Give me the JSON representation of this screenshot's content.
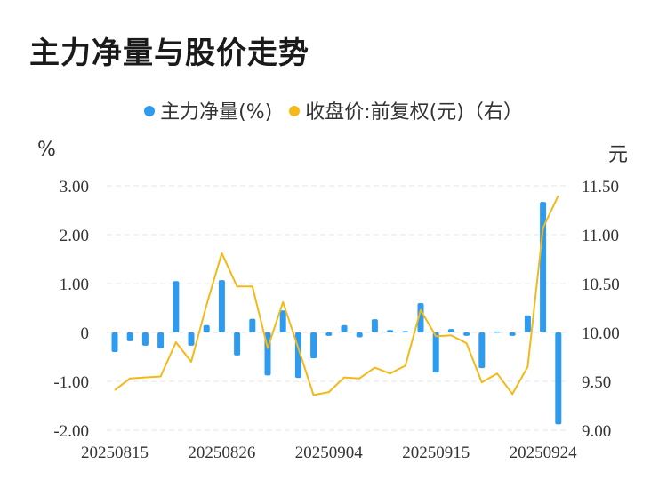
{
  "title": "主力净量与股价走势",
  "legend": {
    "bar_label": "主力净量(%)",
    "line_label": "收盘价:前复权(元)（右）"
  },
  "units": {
    "left": "%",
    "right": "元"
  },
  "colors": {
    "bar": "#2e9bef",
    "line": "#f5b819",
    "grid": "#e6e6e6"
  },
  "chart_data": {
    "type": "bar+line",
    "x_tick_labels": [
      "20250815",
      "20250826",
      "20250904",
      "20250915",
      "20250924"
    ],
    "x_tick_indices": [
      0,
      7,
      14,
      21,
      28
    ],
    "left_axis": {
      "ticks": [
        3.0,
        2.0,
        1.0,
        0,
        -1.0,
        -2.0
      ],
      "tick_labels": [
        "3.00",
        "2.00",
        "1.00",
        "0",
        "-1.00",
        "-2.00"
      ],
      "range": [
        -2.0,
        3.0
      ]
    },
    "right_axis": {
      "ticks": [
        11.5,
        11.0,
        10.5,
        10.0,
        9.5,
        9.0
      ],
      "tick_labels": [
        "11.50",
        "11.00",
        "10.50",
        "10.00",
        "9.50",
        "9.00"
      ],
      "range": [
        9.0,
        11.5
      ]
    },
    "series": [
      {
        "name": "主力净量(%)",
        "type": "bar",
        "axis": "left",
        "values": [
          -0.4,
          -0.18,
          -0.27,
          -0.33,
          1.05,
          -0.27,
          0.15,
          1.07,
          -0.47,
          0.28,
          -0.88,
          0.45,
          -0.93,
          -0.53,
          -0.07,
          0.15,
          -0.1,
          0.27,
          0.05,
          0.03,
          0.6,
          -0.82,
          0.07,
          -0.07,
          -0.73,
          0.02,
          -0.07,
          0.35,
          2.67,
          -1.88
        ]
      },
      {
        "name": "收盘价:前复权(元)（右）",
        "type": "line",
        "axis": "right",
        "values": [
          9.41,
          9.53,
          9.54,
          9.55,
          9.9,
          9.7,
          10.28,
          10.81,
          10.47,
          10.47,
          9.84,
          10.31,
          9.84,
          9.36,
          9.39,
          9.54,
          9.53,
          9.64,
          9.58,
          9.66,
          10.23,
          9.96,
          9.97,
          9.89,
          9.49,
          9.58,
          9.37,
          9.65,
          11.07,
          11.4
        ]
      }
    ]
  }
}
